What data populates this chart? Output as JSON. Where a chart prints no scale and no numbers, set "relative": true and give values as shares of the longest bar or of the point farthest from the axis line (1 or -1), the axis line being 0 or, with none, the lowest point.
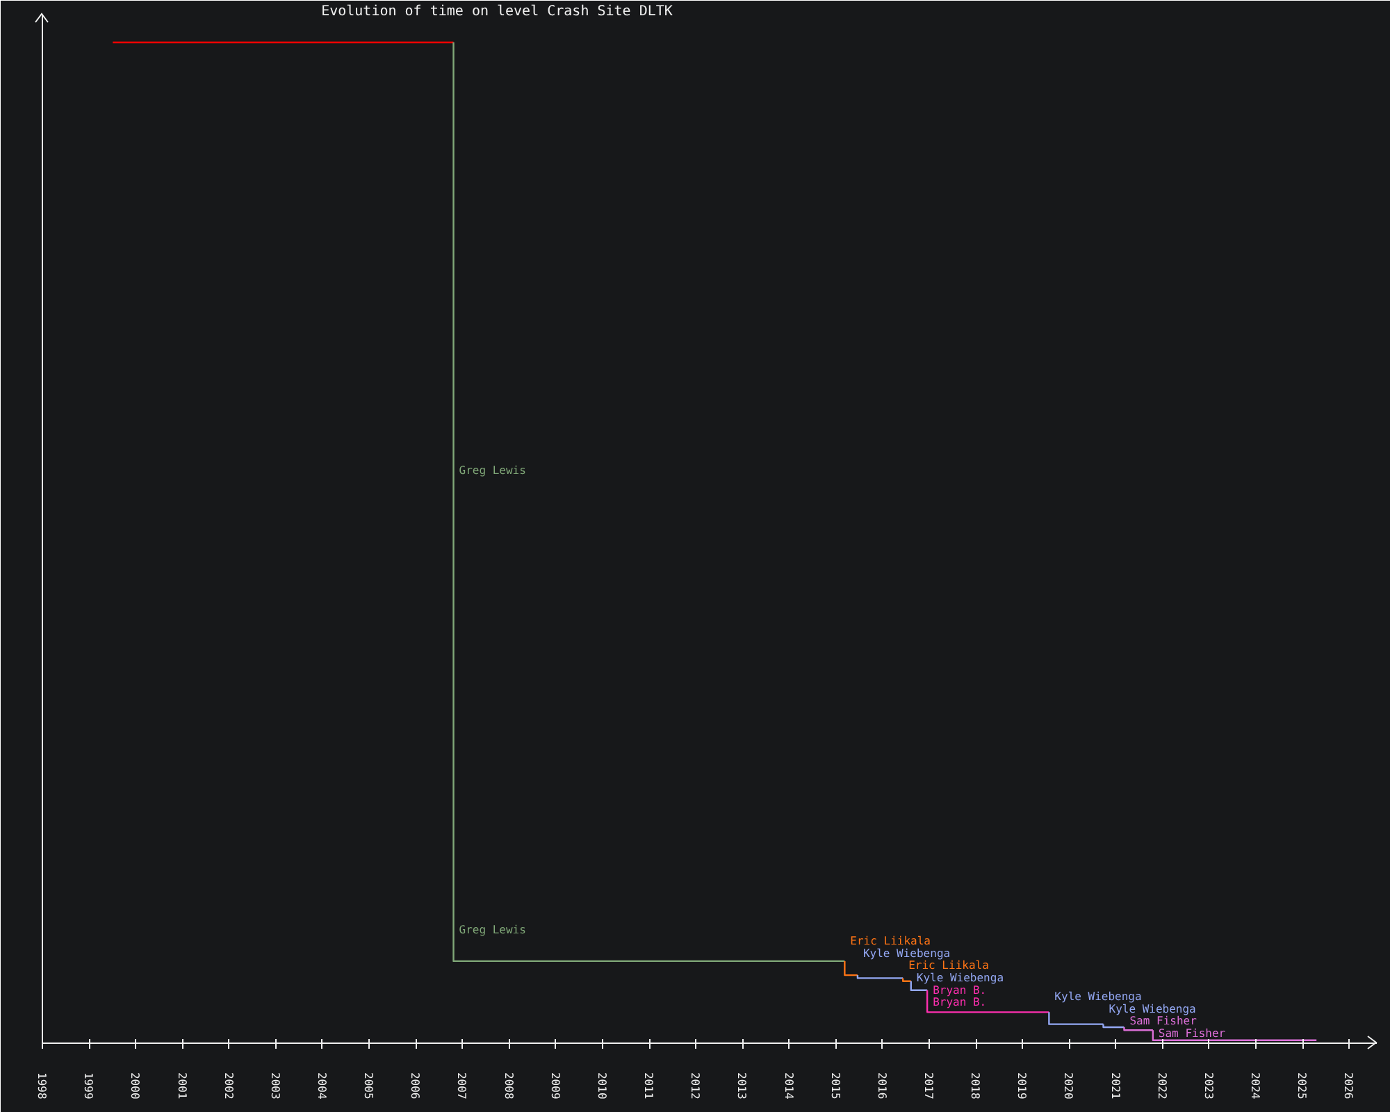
{
  "chart_data": {
    "type": "line",
    "title": "Evolution of time on level Crash Site DLTK",
    "relative": true,
    "xlim": [
      "1998",
      "2026-08-04"
    ],
    "xticks": [
      "1998",
      "1999",
      "2000",
      "2001",
      "2002",
      "2003",
      "2004",
      "2005",
      "2006",
      "2007",
      "2008",
      "2009",
      "2010",
      "2011",
      "2012",
      "2013",
      "2014",
      "2015",
      "2016",
      "2017",
      "2018",
      "2019",
      "2020",
      "2021",
      "2022",
      "2023",
      "2024",
      "2025",
      "2026"
    ],
    "series": [
      {
        "color": "#ff0000",
        "x": [
          "1999-07-06",
          "2006-10-23"
        ],
        "values": [
          1,
          1
        ]
      },
      {
        "color": "#80a878",
        "x": [
          "2006-10-23",
          "2006-10-23",
          "2015-03-11"
        ],
        "values": [
          1,
          0.082,
          0.082
        ]
      },
      {
        "color": "#ff7415",
        "x": [
          "2015-03-11",
          "2015-03-11",
          "2015-06-20"
        ],
        "values": [
          0.082,
          0.068,
          0.068
        ]
      },
      {
        "color": "#94a8f4",
        "x": [
          "2015-06-20",
          "2015-06-20",
          "2016-06-09"
        ],
        "values": [
          0.068,
          0.065,
          0.065
        ]
      },
      {
        "color": "#ff7415",
        "x": [
          "2016-06-09",
          "2016-06-09",
          "2016-08-11"
        ],
        "values": [
          0.065,
          0.062,
          0.062
        ]
      },
      {
        "color": "#94a8f4",
        "x": [
          "2016-08-11",
          "2016-08-11",
          "2016-12-16"
        ],
        "values": [
          0.062,
          0.053,
          0.053
        ]
      },
      {
        "color": "#ff2fb0",
        "x": [
          "2016-12-16",
          "2016-12-16",
          "2019-07-27"
        ],
        "values": [
          0.053,
          0.031,
          0.031
        ]
      },
      {
        "color": "#94a8f4",
        "x": [
          "2019-07-27",
          "2019-07-27",
          "2020-09-24"
        ],
        "values": [
          0.031,
          0.019,
          0.019
        ]
      },
      {
        "color": "#94a8f4",
        "x": [
          "2020-09-24",
          "2020-09-24",
          "2021-03-06"
        ],
        "values": [
          0.019,
          0.016,
          0.016
        ]
      },
      {
        "color": "#dc6fd8",
        "x": [
          "2021-03-06",
          "2021-03-06",
          "2021-10-17"
        ],
        "values": [
          0.016,
          0.013,
          0.013
        ]
      },
      {
        "color": "#dc6fd8",
        "x": [
          "2021-10-17",
          "2021-10-17",
          "2025-04-19"
        ],
        "values": [
          0.013,
          0.003,
          0.003
        ]
      }
    ],
    "annotations": [
      {
        "text": "Greg Lewis",
        "x": "2006-10-23",
        "y": 0.572
      },
      {
        "text": "Greg Lewis",
        "x": "2006-10-23",
        "y": 0.113
      },
      {
        "text": "Eric Liikala",
        "x": "2015-03-11",
        "y": 0.075
      },
      {
        "text": "Kyle Wiebenga",
        "x": "2015-06-20",
        "y": 0.067
      },
      {
        "text": "Eric Liikala",
        "x": "2016-06-09",
        "y": 0.063
      },
      {
        "text": "Kyle Wiebenga",
        "x": "2016-08-11",
        "y": 0.057
      },
      {
        "text": "Bryan B.",
        "x": "2016-12-16",
        "y": 0.051
      },
      {
        "text": "Bryan B.",
        "x": "2016-12-16",
        "y": 0.041
      },
      {
        "text": "Kyle Wiebenga",
        "x": "2019-07-27",
        "y": 0.025
      },
      {
        "text": "Kyle Wiebenga",
        "x": "2020-09-24",
        "y": 0.018
      },
      {
        "text": "Sam Fisher",
        "x": "2021-03-06",
        "y": 0.015
      },
      {
        "text": "Sam Fisher",
        "x": "2021-10-17",
        "y": 0.007
      }
    ]
  }
}
